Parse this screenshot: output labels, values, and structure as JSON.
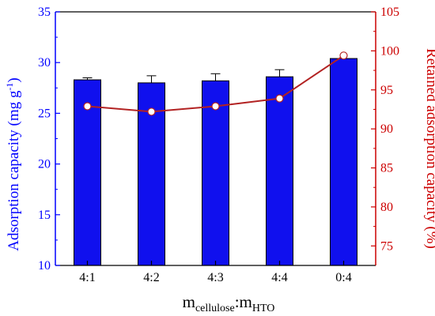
{
  "chart_data": {
    "type": "bar",
    "categories": [
      "4:1",
      "4:2",
      "4:3",
      "4:4",
      "0:4"
    ],
    "series": [
      {
        "axis": "left",
        "type": "bar",
        "values": [
          28.3,
          28.0,
          28.2,
          28.6,
          30.4
        ],
        "errors": [
          0.2,
          0.7,
          0.7,
          0.7,
          0.0
        ],
        "color": "#1010ee"
      },
      {
        "axis": "right",
        "type": "line",
        "values": [
          92.9,
          92.2,
          92.9,
          93.9,
          99.4
        ],
        "color": "#b22222"
      }
    ],
    "xlabel": {
      "main": "m",
      "sub1": "cellulose",
      "sep": ":m",
      "sub2": "HTO"
    },
    "ylabel_left": {
      "pre": "Adsorption capacity (mg g",
      "sup": "-1",
      "post": ")"
    },
    "ylabel_right": "Retained adsorption capacity (%)",
    "ylim_left": [
      10,
      35
    ],
    "yticks_left": [
      10,
      15,
      20,
      25,
      30,
      35
    ],
    "ylim_right": [
      72.5,
      105
    ],
    "yticks_right": [
      75,
      80,
      85,
      90,
      95,
      100,
      105
    ],
    "grid": false,
    "left_axis_color": "#0000ff",
    "right_axis_color": "#cc0000"
  }
}
